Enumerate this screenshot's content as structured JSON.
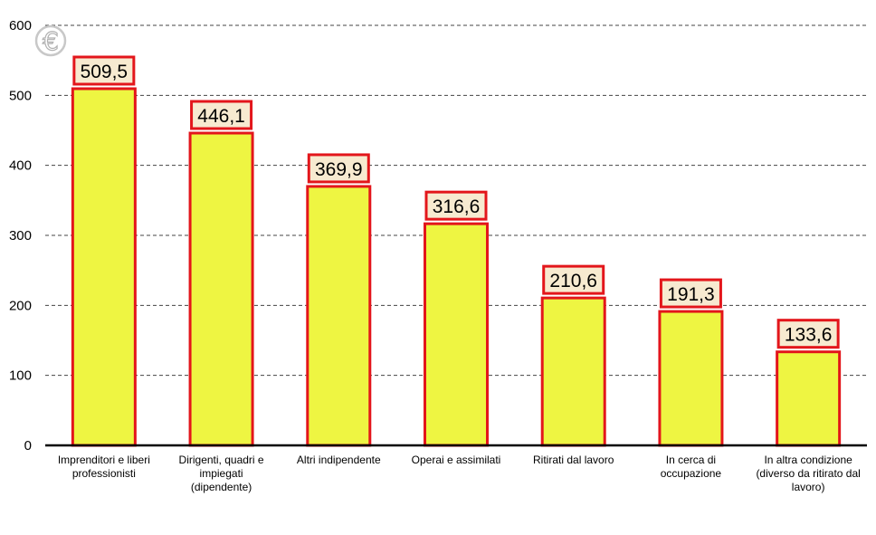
{
  "chart_data": {
    "type": "bar",
    "categories": [
      "Imprenditori e liberi professionisti",
      "Dirigenti, quadri e impiegati (dipendente)",
      "Altri indipendente",
      "Operai e assimilati",
      "Ritirati dal lavoro",
      "In cerca di occupazione",
      "In altra condizione (diverso da ritirato dal lavoro)"
    ],
    "category_lines": [
      [
        "Imprenditori e liberi",
        "professionisti"
      ],
      [
        "Dirigenti, quadri e",
        "impiegati",
        "(dipendente)"
      ],
      [
        "Altri indipendente"
      ],
      [
        "Operai e assimilati"
      ],
      [
        "Ritirati dal lavoro"
      ],
      [
        "In cerca di",
        "occupazione"
      ],
      [
        "In altra condizione",
        "(diverso da ritirato dal",
        "lavoro)"
      ]
    ],
    "values": [
      509.5,
      446.1,
      369.9,
      316.6,
      210.6,
      191.3,
      133.6
    ],
    "data_labels": [
      "509,5",
      "446,1",
      "369,9",
      "316,6",
      "210,6",
      "191,3",
      "133,6"
    ],
    "y_ticks": [
      0,
      100,
      200,
      300,
      400,
      500,
      600
    ],
    "ylim": [
      0,
      600
    ],
    "grid": true,
    "grid_style": "dashed",
    "bar_fill": "#eef542",
    "bar_stroke": "#e3161b",
    "label_box_fill": "#f7ead0",
    "label_box_stroke": "#e3161b",
    "icon": "euro-icon",
    "title": "",
    "xlabel": "",
    "ylabel": ""
  }
}
